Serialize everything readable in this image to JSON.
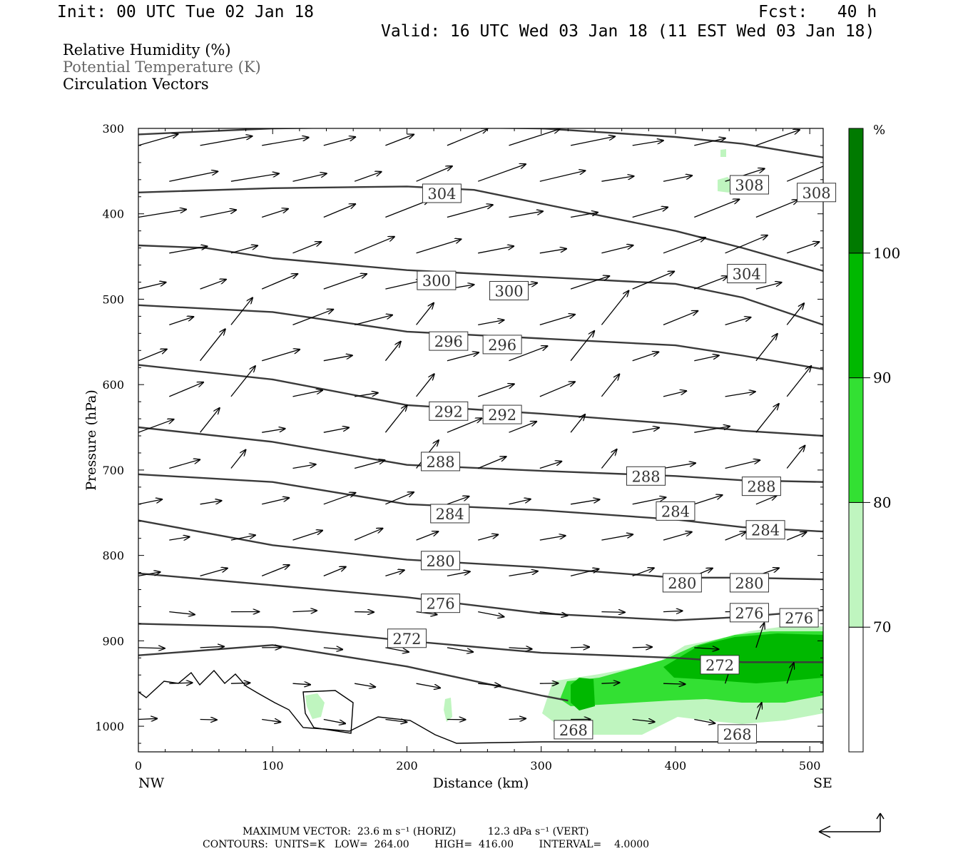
{
  "header": {
    "init": "Init: 00 UTC Tue 02 Jan 18",
    "fcst": "Fcst:   40 h",
    "valid": "Valid: 16 UTC Wed 03 Jan 18 (11 EST Wed 03 Jan 18)"
  },
  "legend": {
    "line1": "Relative Humidity (%)",
    "line2": "Potential Temperature (K)",
    "line3": "Circulation Vectors"
  },
  "footer": {
    "max_vector": "MAXIMUM VECTOR:  23.6 m s⁻¹ (HORIZ)          12.3 dPa s⁻¹ (VERT)",
    "contours": "CONTOURS:  UNITS=K   LOW=  264.00        HIGH=  416.00        INTERVAL=    4.0000"
  },
  "chart_data": {
    "type": "cross-section",
    "xlabel": "Distance (km)",
    "ylabel": "Pressure (hPa)",
    "xlim": [
      0,
      510
    ],
    "ylim": [
      1030,
      300
    ],
    "x_ticks": [
      0,
      100,
      200,
      300,
      400,
      500
    ],
    "y_ticks": [
      300,
      400,
      500,
      600,
      700,
      800,
      900,
      1000
    ],
    "x_end_labels": {
      "left": "NW",
      "right": "SE"
    },
    "colorbar": {
      "unit": "%",
      "levels": [
        70,
        80,
        90,
        100
      ],
      "colors": [
        "#ffffff",
        "#bff5bf",
        "#33e033",
        "#00b800",
        "#007a00"
      ]
    },
    "theta_contours": [
      {
        "value": 308,
        "points": [
          [
            0,
            307
          ],
          [
            100,
            300
          ],
          [
            200,
            298
          ],
          [
            300,
            300
          ],
          [
            400,
            310
          ],
          [
            450,
            318
          ],
          [
            510,
            334
          ]
        ],
        "labels": [
          [
            455,
            366
          ],
          [
            505,
            375
          ]
        ]
      },
      {
        "value": 304,
        "points": [
          [
            0,
            375
          ],
          [
            100,
            370
          ],
          [
            200,
            368
          ],
          [
            250,
            372
          ],
          [
            300,
            388
          ],
          [
            400,
            420
          ],
          [
            450,
            440
          ],
          [
            510,
            467
          ]
        ],
        "labels": [
          [
            226,
            376
          ],
          [
            453,
            470
          ]
        ]
      },
      {
        "value": 300,
        "points": [
          [
            0,
            437
          ],
          [
            50,
            440
          ],
          [
            100,
            452
          ],
          [
            200,
            466
          ],
          [
            300,
            474
          ],
          [
            400,
            482
          ],
          [
            450,
            498
          ],
          [
            510,
            530
          ]
        ],
        "labels": [
          [
            222,
            478
          ],
          [
            276,
            490
          ]
        ]
      },
      {
        "value": 296,
        "points": [
          [
            0,
            507
          ],
          [
            100,
            515
          ],
          [
            200,
            538
          ],
          [
            300,
            546
          ],
          [
            400,
            554
          ],
          [
            450,
            566
          ],
          [
            510,
            582
          ]
        ],
        "labels": [
          [
            231,
            549
          ],
          [
            271,
            553
          ]
        ]
      },
      {
        "value": 292,
        "points": [
          [
            0,
            577
          ],
          [
            100,
            594
          ],
          [
            200,
            624
          ],
          [
            300,
            634
          ],
          [
            400,
            646
          ],
          [
            450,
            654
          ],
          [
            510,
            660
          ]
        ],
        "labels": [
          [
            231,
            631
          ],
          [
            271,
            635
          ]
        ]
      },
      {
        "value": 288,
        "points": [
          [
            0,
            650
          ],
          [
            100,
            667
          ],
          [
            200,
            694
          ],
          [
            300,
            701
          ],
          [
            400,
            707
          ],
          [
            450,
            712
          ],
          [
            510,
            714
          ]
        ],
        "labels": [
          [
            225,
            690
          ],
          [
            378,
            707
          ],
          [
            464,
            719
          ]
        ]
      },
      {
        "value": 284,
        "points": [
          [
            0,
            705
          ],
          [
            100,
            714
          ],
          [
            200,
            740
          ],
          [
            300,
            747
          ],
          [
            400,
            758
          ],
          [
            450,
            767
          ],
          [
            510,
            772
          ]
        ],
        "labels": [
          [
            232,
            751
          ],
          [
            400,
            748
          ],
          [
            467,
            770
          ]
        ]
      },
      {
        "value": 280,
        "points": [
          [
            0,
            759
          ],
          [
            100,
            788
          ],
          [
            200,
            805
          ],
          [
            300,
            814
          ],
          [
            400,
            826
          ],
          [
            450,
            826
          ],
          [
            510,
            828
          ]
        ],
        "labels": [
          [
            225,
            806
          ],
          [
            405,
            832
          ],
          [
            455,
            832
          ]
        ]
      },
      {
        "value": 276,
        "points": [
          [
            0,
            821
          ],
          [
            100,
            835
          ],
          [
            200,
            849
          ],
          [
            300,
            868
          ],
          [
            400,
            876
          ],
          [
            450,
            872
          ],
          [
            510,
            864
          ]
        ],
        "labels": [
          [
            225,
            856
          ],
          [
            455,
            867
          ],
          [
            492,
            873
          ]
        ]
      },
      {
        "value": 272,
        "points": [
          [
            0,
            880
          ],
          [
            100,
            884
          ],
          [
            200,
            900
          ],
          [
            300,
            914
          ],
          [
            400,
            920
          ],
          [
            450,
            925
          ],
          [
            510,
            925
          ]
        ],
        "labels": [
          [
            200,
            897
          ],
          [
            433,
            928
          ]
        ]
      },
      {
        "value": 268,
        "points": [
          [
            0,
            917
          ],
          [
            100,
            905
          ],
          [
            200,
            930
          ],
          [
            300,
            964
          ],
          [
            320,
            970
          ]
        ],
        "labels": [
          [
            324,
            1004
          ],
          [
            446,
            1009
          ]
        ]
      }
    ]
  }
}
